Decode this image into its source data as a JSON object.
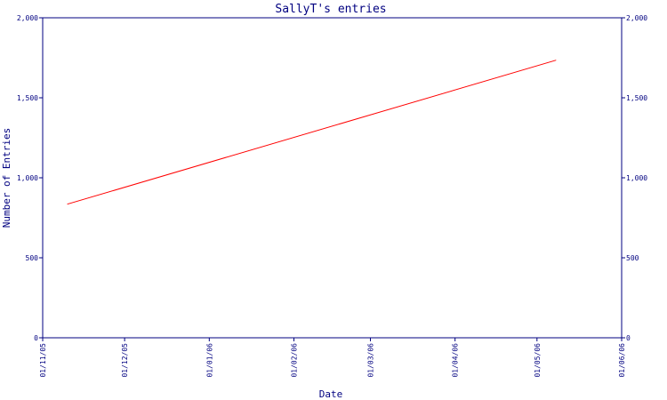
{
  "chart_data": {
    "type": "line",
    "title": "SallyT's entries",
    "xlabel": "Date",
    "ylabel": "Number of Entries",
    "x_tick_labels": [
      "01/11/05",
      "01/12/05",
      "01/01/06",
      "01/02/06",
      "01/03/06",
      "01/04/06",
      "01/05/06",
      "01/06/06"
    ],
    "y_tick_values": [
      0,
      500,
      1000,
      1500,
      2000
    ],
    "y_tick_labels": [
      "0",
      "500",
      "1,000",
      "1,500",
      "2,000"
    ],
    "xlim": [
      "2005-11-01",
      "2006-06-01"
    ],
    "ylim": [
      0,
      2000
    ],
    "grid": false,
    "right_axis_duplicate": true,
    "series": [
      {
        "x": [
          "2005-11-10",
          "2006-05-08"
        ],
        "y": [
          835,
          1735
        ],
        "color": "#ff0000"
      }
    ],
    "colors": {
      "axis": "#000080",
      "line": "#ff0000",
      "background": "#ffffff"
    }
  }
}
